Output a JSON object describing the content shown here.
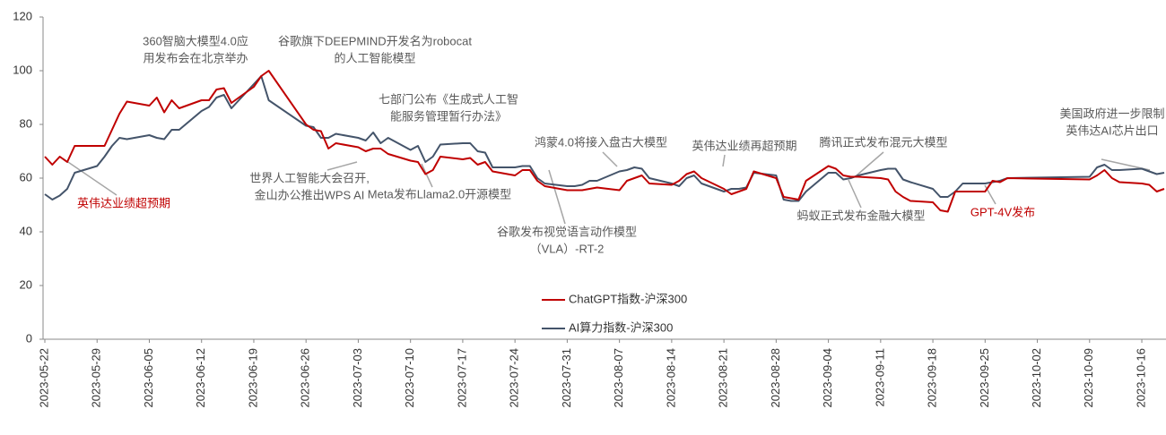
{
  "chart_data": {
    "type": "line",
    "x": [
      "2023-05-22",
      "2023-05-23",
      "2023-05-24",
      "2023-05-25",
      "2023-05-26",
      "2023-05-29",
      "2023-05-30",
      "2023-05-31",
      "2023-06-01",
      "2023-06-02",
      "2023-06-05",
      "2023-06-06",
      "2023-06-07",
      "2023-06-08",
      "2023-06-09",
      "2023-06-12",
      "2023-06-13",
      "2023-06-14",
      "2023-06-15",
      "2023-06-16",
      "2023-06-19",
      "2023-06-20",
      "2023-06-21",
      "2023-06-26",
      "2023-06-27",
      "2023-06-28",
      "2023-06-29",
      "2023-06-30",
      "2023-07-03",
      "2023-07-04",
      "2023-07-05",
      "2023-07-06",
      "2023-07-07",
      "2023-07-10",
      "2023-07-11",
      "2023-07-12",
      "2023-07-13",
      "2023-07-14",
      "2023-07-17",
      "2023-07-18",
      "2023-07-19",
      "2023-07-20",
      "2023-07-21",
      "2023-07-24",
      "2023-07-25",
      "2023-07-26",
      "2023-07-27",
      "2023-07-28",
      "2023-07-31",
      "2023-08-01",
      "2023-08-02",
      "2023-08-03",
      "2023-08-04",
      "2023-08-07",
      "2023-08-08",
      "2023-08-09",
      "2023-08-10",
      "2023-08-11",
      "2023-08-14",
      "2023-08-15",
      "2023-08-16",
      "2023-08-17",
      "2023-08-18",
      "2023-08-21",
      "2023-08-22",
      "2023-08-23",
      "2023-08-24",
      "2023-08-25",
      "2023-08-28",
      "2023-08-29",
      "2023-08-30",
      "2023-08-31",
      "2023-09-01",
      "2023-09-04",
      "2023-09-05",
      "2023-09-06",
      "2023-09-07",
      "2023-09-08",
      "2023-09-11",
      "2023-09-12",
      "2023-09-13",
      "2023-09-14",
      "2023-09-15",
      "2023-09-18",
      "2023-09-19",
      "2023-09-20",
      "2023-09-21",
      "2023-09-22",
      "2023-09-25",
      "2023-09-26",
      "2023-09-27",
      "2023-09-28",
      "2023-10-09",
      "2023-10-10",
      "2023-10-11",
      "2023-10-12",
      "2023-10-13",
      "2023-10-16",
      "2023-10-17",
      "2023-10-18",
      "2023-10-19"
    ],
    "series": [
      {
        "name": "ChatGPT指数-沪深300",
        "color": "#c00000",
        "values": [
          68,
          65,
          68,
          66,
          72,
          72,
          72,
          78,
          84,
          88.5,
          87,
          90,
          84.5,
          89,
          86,
          89,
          89,
          93,
          93.5,
          88,
          94,
          98,
          100,
          80,
          78,
          77.5,
          71,
          73,
          71.5,
          70,
          71,
          71,
          69,
          66.5,
          66,
          61.5,
          63,
          68,
          67,
          67.5,
          65,
          66,
          62.5,
          61,
          63,
          63,
          59,
          57,
          55.5,
          55.5,
          55.5,
          56,
          56.5,
          55.5,
          59,
          60,
          61,
          58,
          57.5,
          59,
          61.5,
          62.5,
          60,
          56,
          54,
          55,
          56,
          62.5,
          60,
          53,
          52.5,
          52,
          59,
          64.5,
          63.5,
          61,
          60.5,
          60.5,
          60,
          59.5,
          55,
          53,
          51.5,
          51,
          48,
          47.5,
          55,
          55,
          55,
          59,
          58.5,
          60,
          59.5,
          61,
          63,
          60,
          58.5,
          58,
          57.5,
          55,
          56
        ]
      },
      {
        "name": "AI算力指数-沪深300",
        "color": "#44546a",
        "values": [
          54,
          52,
          53.5,
          56,
          62,
          64.5,
          68,
          72,
          75,
          74.5,
          76,
          75,
          74.5,
          78,
          78,
          85,
          86.5,
          90,
          91,
          86,
          95,
          98,
          89,
          79.5,
          79,
          75,
          75,
          76.5,
          75,
          74,
          77,
          73,
          75,
          70.5,
          72,
          66,
          68,
          72.5,
          73,
          73,
          70,
          69.5,
          64,
          64,
          64.5,
          64.5,
          60,
          58,
          57,
          57,
          57.5,
          59,
          59,
          62.5,
          63,
          64,
          63.5,
          60,
          58,
          57,
          60,
          61,
          58,
          55,
          56,
          56,
          56.5,
          62,
          61,
          52,
          51.5,
          51.5,
          55,
          62,
          62,
          59.5,
          60,
          61,
          63,
          63.5,
          63.5,
          59.5,
          58.5,
          56,
          53,
          53,
          55,
          58,
          58,
          58.5,
          59,
          60,
          60.5,
          64,
          65,
          63,
          63,
          63.5,
          62.5,
          61.5,
          62
        ]
      }
    ],
    "xlim": [
      "2023-05-22",
      "2023-10-19"
    ],
    "xticks": [
      "2023-05-22",
      "2023-05-29",
      "2023-06-05",
      "2023-06-12",
      "2023-06-19",
      "2023-06-26",
      "2023-07-03",
      "2023-07-10",
      "2023-07-17",
      "2023-07-24",
      "2023-07-31",
      "2023-08-07",
      "2023-08-14",
      "2023-08-21",
      "2023-08-28",
      "2023-09-04",
      "2023-09-11",
      "2023-09-18",
      "2023-09-25",
      "2023-10-02",
      "2023-10-09",
      "2023-10-16"
    ],
    "ylim": [
      0,
      120
    ],
    "yticks": [
      0,
      20,
      40,
      60,
      80,
      100,
      120
    ],
    "grid": false,
    "legend": "bottom",
    "annotations": [
      {
        "lines": [
          "英伟达业绩超预期"
        ],
        "color": "#c00000"
      },
      {
        "lines": [
          "360智脑大模型4.0应",
          "用发布会在北京举办"
        ],
        "color": "#595959"
      },
      {
        "lines": [
          "谷歌旗下DEEPMIND开发名为robocat",
          "的人工智能模型"
        ],
        "color": "#595959"
      },
      {
        "lines": [
          "七部门公布《生成式人工智",
          "能服务管理暂行办法》"
        ],
        "color": "#595959"
      },
      {
        "lines": [
          "世界人工智能大会召开,",
          "金山办公推出WPS AI"
        ],
        "color": "#595959"
      },
      {
        "lines": [
          "Meta发布Llama2.0开源模型"
        ],
        "color": "#595959"
      },
      {
        "lines": [
          "谷歌发布视觉语言动作模型",
          "（VLA）-RT-2"
        ],
        "color": "#595959"
      },
      {
        "lines": [
          "鸿蒙4.0将接入盘古大模型"
        ],
        "color": "#595959"
      },
      {
        "lines": [
          "英伟达业绩再超预期"
        ],
        "color": "#595959"
      },
      {
        "lines": [
          "腾讯正式发布混元大模型"
        ],
        "color": "#595959"
      },
      {
        "lines": [
          "蚂蚁正式发布金融大模型"
        ],
        "color": "#595959"
      },
      {
        "lines": [
          "GPT-4V发布"
        ],
        "color": "#c00000"
      },
      {
        "lines": [
          "美国政府进一步限制",
          "英伟达AI芯片出口"
        ],
        "color": "#595959"
      }
    ]
  }
}
